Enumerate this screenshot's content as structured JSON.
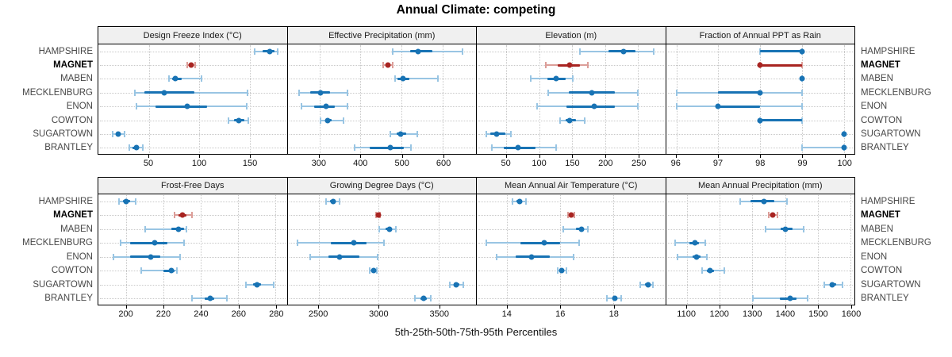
{
  "title": "Annual Climate: competing",
  "footer_label": "5th-25th-50th-75th-95th Percentiles",
  "sites": [
    "HAMPSHIRE",
    "MAGNET",
    "MABEN",
    "MECKLENBURG",
    "ENON",
    "COWTON",
    "SUGARTOWN",
    "BRANTLEY"
  ],
  "highlight_site": "MAGNET",
  "colors": {
    "blue": "#1873b4",
    "blue_light": "#99c5e3",
    "red": "#a82421",
    "red_light": "#dc9e99",
    "grid": "#c8c8c8",
    "header_bg": "#f0f0f0",
    "border": "#000000",
    "label_gray": "#474747"
  },
  "chart_data": {
    "type": "scatter",
    "variant": "trellis-percentile-dotplot",
    "title": "Annual Climate: competing",
    "xlabel": "5th-25th-50th-75th-95th Percentiles",
    "legend": "none",
    "grid": "dotted",
    "percentiles": [
      5,
      25,
      50,
      75,
      95
    ],
    "rows": [
      "HAMPSHIRE",
      "MAGNET",
      "MABEN",
      "MECKLENBURG",
      "ENON",
      "COWTON",
      "SUGARTOWN",
      "BRANTLEY"
    ],
    "highlight_row": "MAGNET",
    "panels": [
      {
        "header": "Design Freeze Index (°C)",
        "xlim": [
          0,
          187
        ],
        "ticks": [
          50,
          100,
          150
        ],
        "values": [
          [
            155,
            163,
            170,
            175,
            178
          ],
          [
            88,
            90,
            92,
            94,
            96
          ],
          [
            70,
            73,
            76,
            83,
            102
          ],
          [
            36,
            46,
            65,
            95,
            148
          ],
          [
            38,
            57,
            88,
            108,
            147
          ],
          [
            129,
            135,
            139,
            145,
            149
          ],
          [
            14,
            17,
            20,
            22,
            26
          ],
          [
            31,
            34,
            38,
            40,
            44
          ]
        ]
      },
      {
        "header": "Effective Precipitation (mm)",
        "xlim": [
          223,
          680
        ],
        "ticks": [
          300,
          400,
          500,
          600
        ],
        "values": [
          [
            478,
            520,
            540,
            575,
            648
          ],
          [
            455,
            462,
            467,
            472,
            478
          ],
          [
            483,
            490,
            503,
            518,
            588
          ],
          [
            250,
            277,
            302,
            325,
            368
          ],
          [
            256,
            288,
            317,
            338,
            368
          ],
          [
            303,
            314,
            321,
            330,
            358
          ],
          [
            472,
            488,
            497,
            510,
            538
          ],
          [
            386,
            422,
            473,
            505,
            523
          ]
        ]
      },
      {
        "header": "Elevation (m)",
        "xlim": [
          5,
          291
        ],
        "ticks": [
          50,
          100,
          150,
          200,
          250
        ],
        "values": [
          [
            162,
            205,
            228,
            246,
            273
          ],
          [
            110,
            128,
            146,
            162,
            173
          ],
          [
            87,
            112,
            126,
            140,
            151
          ],
          [
            113,
            145,
            180,
            214,
            250
          ],
          [
            97,
            141,
            183,
            214,
            249
          ],
          [
            131,
            140,
            146,
            155,
            169
          ],
          [
            20,
            26,
            35,
            48,
            57
          ],
          [
            28,
            46,
            68,
            94,
            125
          ]
        ]
      },
      {
        "header": "Fraction of Annual PPT as Rain",
        "xlim": [
          95.75,
          100.25
        ],
        "ticks": [
          96,
          97,
          98,
          99,
          100
        ],
        "values": [
          [
            98,
            98,
            99,
            99,
            99
          ],
          [
            98,
            98,
            98,
            99,
            99
          ],
          [
            99,
            99,
            99,
            99,
            99
          ],
          [
            96,
            97,
            98,
            98,
            99
          ],
          [
            96,
            97,
            97,
            98,
            99
          ],
          [
            98,
            98,
            98,
            99,
            99
          ],
          [
            100,
            100,
            100,
            100,
            100
          ],
          [
            99,
            100,
            100,
            100,
            100
          ]
        ]
      },
      {
        "header": "Frost-Free Days",
        "xlim": [
          185,
          286
        ],
        "ticks": [
          200,
          220,
          240,
          260,
          280
        ],
        "values": [
          [
            196,
            198,
            200,
            202,
            205
          ],
          [
            226,
            228,
            230,
            232,
            235
          ],
          [
            210,
            224,
            228,
            231,
            232
          ],
          [
            197,
            202,
            215,
            222,
            231
          ],
          [
            193,
            202,
            213,
            218,
            229
          ],
          [
            208,
            220,
            224,
            226,
            227
          ],
          [
            264,
            268,
            270,
            272,
            279
          ],
          [
            235,
            242,
            245,
            247,
            254
          ]
        ]
      },
      {
        "header": "Growing Degree Days (°C)",
        "xlim": [
          2240,
          3810
        ],
        "ticks": [
          2500,
          3000,
          3500
        ],
        "values": [
          [
            2560,
            2595,
            2618,
            2640,
            2672
          ],
          [
            2975,
            2988,
            2996,
            3004,
            3012
          ],
          [
            3005,
            3058,
            3088,
            3110,
            3145
          ],
          [
            2320,
            2600,
            2795,
            2900,
            3040
          ],
          [
            2430,
            2580,
            2675,
            2840,
            2990
          ],
          [
            2925,
            2945,
            2955,
            2965,
            2982
          ],
          [
            3590,
            3628,
            3648,
            3668,
            3702
          ],
          [
            3300,
            3350,
            3375,
            3398,
            3432
          ]
        ]
      },
      {
        "header": "Mean Annual Air Temperature (°C)",
        "xlim": [
          12.85,
          19.95
        ],
        "ticks": [
          14,
          16,
          18
        ],
        "values": [
          [
            14.2,
            14.35,
            14.45,
            14.55,
            14.7
          ],
          [
            16.3,
            16.38,
            16.42,
            16.46,
            16.52
          ],
          [
            16.1,
            16.6,
            16.8,
            16.9,
            17.05
          ],
          [
            13.2,
            14.5,
            15.4,
            16.0,
            16.7
          ],
          [
            13.6,
            14.3,
            14.9,
            15.6,
            16.5
          ],
          [
            15.9,
            16.0,
            16.05,
            16.12,
            16.22
          ],
          [
            19.0,
            19.2,
            19.3,
            19.38,
            19.5
          ],
          [
            17.75,
            17.95,
            18.05,
            18.12,
            18.3
          ]
        ]
      },
      {
        "header": "Mean Annual Precipitation (mm)",
        "xlim": [
          1036,
          1612
        ],
        "ticks": [
          1100,
          1200,
          1300,
          1400,
          1500,
          1600
        ],
        "values": [
          [
            1262,
            1295,
            1335,
            1368,
            1405
          ],
          [
            1350,
            1358,
            1363,
            1368,
            1376
          ],
          [
            1340,
            1386,
            1400,
            1424,
            1456
          ],
          [
            1065,
            1108,
            1124,
            1136,
            1156
          ],
          [
            1072,
            1118,
            1130,
            1141,
            1162
          ],
          [
            1146,
            1162,
            1170,
            1182,
            1214
          ],
          [
            1520,
            1536,
            1545,
            1556,
            1576
          ],
          [
            1302,
            1385,
            1415,
            1436,
            1470
          ]
        ]
      }
    ]
  }
}
